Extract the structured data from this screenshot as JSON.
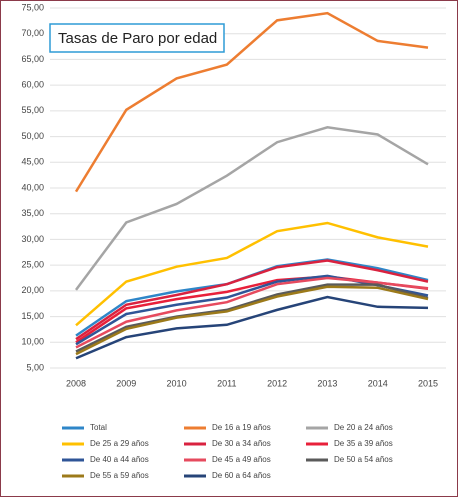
{
  "chart_data": {
    "type": "line",
    "title": "Tasas de Paro por edad",
    "x": [
      "2008",
      "2009",
      "2010",
      "2011",
      "2012",
      "2013",
      "2014",
      "2015"
    ],
    "ylim": [
      5,
      75
    ],
    "yticks": [
      {
        "value": 5,
        "label": "5,00"
      },
      {
        "value": 10,
        "label": "10,00"
      },
      {
        "value": 15,
        "label": "15,00"
      },
      {
        "value": 20,
        "label": "20,00"
      },
      {
        "value": 25,
        "label": "25,00"
      },
      {
        "value": 30,
        "label": "30,00"
      },
      {
        "value": 35,
        "label": "35,00"
      },
      {
        "value": 40,
        "label": "40,00"
      },
      {
        "value": 45,
        "label": "45,00"
      },
      {
        "value": 50,
        "label": "50,00"
      },
      {
        "value": 55,
        "label": "55,00"
      },
      {
        "value": 60,
        "label": "60,00"
      },
      {
        "value": 65,
        "label": "65,00"
      },
      {
        "value": 70,
        "label": "70,00"
      },
      {
        "value": 75,
        "label": "75,00"
      }
    ],
    "grid": true,
    "series": [
      {
        "name": "Total",
        "color": "#2e86c8",
        "values": [
          11.3,
          18.0,
          19.9,
          21.3,
          24.8,
          26.1,
          24.4,
          22.1
        ]
      },
      {
        "name": "De 16 a 19 años",
        "color": "#ed7d31",
        "values": [
          39.3,
          55.2,
          61.3,
          64.0,
          72.6,
          74.0,
          68.6,
          67.3
        ]
      },
      {
        "name": "De 20 a 24 años",
        "color": "#a5a5a5",
        "values": [
          20.2,
          33.3,
          36.9,
          42.4,
          48.9,
          51.8,
          50.4,
          44.6
        ]
      },
      {
        "name": "De 25 a 29 años",
        "color": "#ffc000",
        "values": [
          13.3,
          21.8,
          24.7,
          26.4,
          31.6,
          33.2,
          30.4,
          28.6
        ]
      },
      {
        "name": "De 30 a 34 años",
        "color": "#d9223f",
        "values": [
          10.6,
          17.3,
          19.2,
          21.3,
          24.6,
          25.9,
          24.0,
          21.8
        ]
      },
      {
        "name": "De 35 a 39 años",
        "color": "#e8203a",
        "values": [
          10.0,
          16.6,
          18.4,
          19.8,
          22.1,
          22.8,
          21.6,
          20.4
        ]
      },
      {
        "name": "De 40 a 44 años",
        "color": "#2f5597",
        "values": [
          9.6,
          15.5,
          17.3,
          18.7,
          21.8,
          22.9,
          21.1,
          19.1
        ]
      },
      {
        "name": "De 45 a 49 años",
        "color": "#e64a5e",
        "values": [
          9.0,
          14.0,
          16.2,
          17.8,
          21.3,
          22.5,
          21.6,
          20.5
        ]
      },
      {
        "name": "De 50 a 54 años",
        "color": "#5a5a5a",
        "values": [
          8.2,
          13.0,
          15.0,
          16.3,
          19.3,
          21.2,
          21.2,
          18.6
        ]
      },
      {
        "name": "De 55 a 59 años",
        "color": "#9c7a1a",
        "values": [
          7.7,
          12.6,
          14.8,
          16.0,
          18.9,
          20.8,
          20.6,
          18.4
        ]
      },
      {
        "name": "De 60 a 64 años",
        "color": "#264478",
        "values": [
          6.9,
          11.0,
          12.7,
          13.4,
          16.3,
          18.8,
          16.9,
          16.7
        ]
      }
    ]
  }
}
